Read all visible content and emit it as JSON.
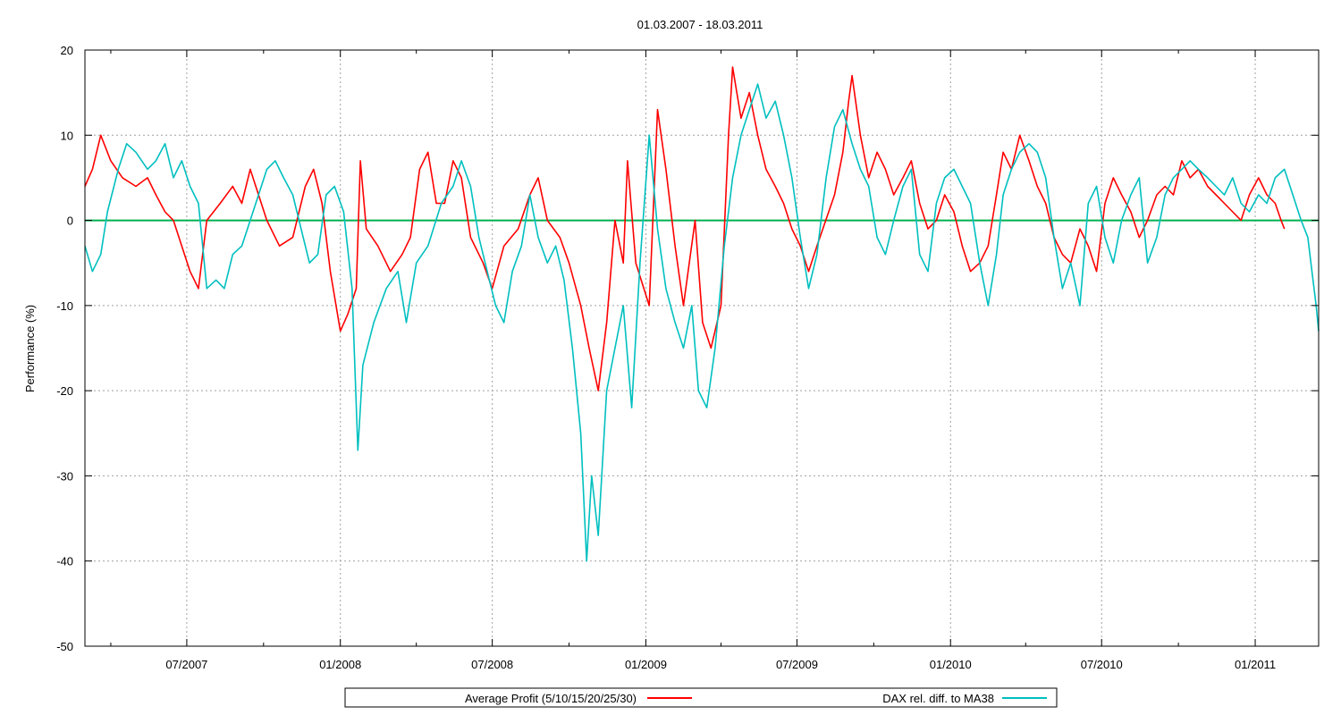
{
  "chart_data": {
    "type": "line",
    "title": "01.03.2007 - 18.03.2011",
    "xlabel": "",
    "ylabel": "Performance (%)",
    "ylim": [
      -50,
      20
    ],
    "yticks": [
      20,
      10,
      0,
      -10,
      -20,
      -30,
      -40,
      -50
    ],
    "xlim": [
      "2007-03-01",
      "2011-03-18"
    ],
    "xticks": [
      {
        "date": "2007-07-01",
        "label": "07/2007"
      },
      {
        "date": "2008-01-01",
        "label": "01/2008"
      },
      {
        "date": "2008-07-01",
        "label": "07/2008"
      },
      {
        "date": "2009-01-01",
        "label": "01/2009"
      },
      {
        "date": "2009-07-01",
        "label": "07/2009"
      },
      {
        "date": "2010-01-01",
        "label": "01/2010"
      },
      {
        "date": "2010-07-01",
        "label": "07/2010"
      },
      {
        "date": "2011-01-01",
        "label": "01/2011"
      }
    ],
    "grid": true,
    "legend_position": "bottom",
    "zero_line_color": "#00b050",
    "series": [
      {
        "name": "Average Profit (5/10/15/20/25/30)",
        "color": "#ff0000",
        "points": [
          [
            "2007-03-01",
            4
          ],
          [
            "2007-03-10",
            6
          ],
          [
            "2007-03-20",
            10
          ],
          [
            "2007-04-01",
            7
          ],
          [
            "2007-04-15",
            5
          ],
          [
            "2007-05-01",
            4
          ],
          [
            "2007-05-15",
            5
          ],
          [
            "2007-05-25",
            3
          ],
          [
            "2007-06-05",
            1
          ],
          [
            "2007-06-15",
            0
          ],
          [
            "2007-06-25",
            -3
          ],
          [
            "2007-07-05",
            -6
          ],
          [
            "2007-07-15",
            -8
          ],
          [
            "2007-07-25",
            0
          ],
          [
            "2007-08-10",
            2
          ],
          [
            "2007-08-25",
            4
          ],
          [
            "2007-09-05",
            2
          ],
          [
            "2007-09-15",
            6
          ],
          [
            "2007-09-25",
            3
          ],
          [
            "2007-10-05",
            0
          ],
          [
            "2007-10-20",
            -3
          ],
          [
            "2007-11-05",
            -2
          ],
          [
            "2007-11-20",
            4
          ],
          [
            "2007-11-30",
            6
          ],
          [
            "2007-12-10",
            2
          ],
          [
            "2007-12-20",
            -6
          ],
          [
            "2008-01-01",
            -13
          ],
          [
            "2008-01-10",
            -11
          ],
          [
            "2008-01-20",
            -8
          ],
          [
            "2008-01-25",
            7
          ],
          [
            "2008-02-01",
            -1
          ],
          [
            "2008-02-15",
            -3
          ],
          [
            "2008-03-01",
            -6
          ],
          [
            "2008-03-15",
            -4
          ],
          [
            "2008-03-25",
            -2
          ],
          [
            "2008-04-05",
            6
          ],
          [
            "2008-04-15",
            8
          ],
          [
            "2008-04-25",
            2
          ],
          [
            "2008-05-05",
            2
          ],
          [
            "2008-05-15",
            7
          ],
          [
            "2008-05-25",
            5
          ],
          [
            "2008-06-05",
            -2
          ],
          [
            "2008-06-20",
            -5
          ],
          [
            "2008-07-01",
            -8
          ],
          [
            "2008-07-15",
            -3
          ],
          [
            "2008-08-01",
            -1
          ],
          [
            "2008-08-15",
            3
          ],
          [
            "2008-08-25",
            5
          ],
          [
            "2008-09-05",
            0
          ],
          [
            "2008-09-20",
            -2
          ],
          [
            "2008-10-01",
            -5
          ],
          [
            "2008-10-15",
            -10
          ],
          [
            "2008-10-25",
            -15
          ],
          [
            "2008-11-05",
            -20
          ],
          [
            "2008-11-15",
            -12
          ],
          [
            "2008-11-25",
            0
          ],
          [
            "2008-12-05",
            -5
          ],
          [
            "2008-12-10",
            7
          ],
          [
            "2008-12-20",
            -5
          ],
          [
            "2009-01-05",
            -10
          ],
          [
            "2009-01-15",
            13
          ],
          [
            "2009-01-25",
            6
          ],
          [
            "2009-02-05",
            -3
          ],
          [
            "2009-02-15",
            -10
          ],
          [
            "2009-03-01",
            0
          ],
          [
            "2009-03-10",
            -12
          ],
          [
            "2009-03-20",
            -15
          ],
          [
            "2009-04-01",
            -10
          ],
          [
            "2009-04-10",
            10
          ],
          [
            "2009-04-15",
            18
          ],
          [
            "2009-04-25",
            12
          ],
          [
            "2009-05-05",
            15
          ],
          [
            "2009-05-15",
            10
          ],
          [
            "2009-05-25",
            6
          ],
          [
            "2009-06-05",
            4
          ],
          [
            "2009-06-15",
            2
          ],
          [
            "2009-06-25",
            -1
          ],
          [
            "2009-07-05",
            -3
          ],
          [
            "2009-07-15",
            -6
          ],
          [
            "2009-07-25",
            -3
          ],
          [
            "2009-08-01",
            -1
          ],
          [
            "2009-08-15",
            3
          ],
          [
            "2009-08-25",
            8
          ],
          [
            "2009-09-01",
            14
          ],
          [
            "2009-09-05",
            17
          ],
          [
            "2009-09-15",
            10
          ],
          [
            "2009-09-25",
            5
          ],
          [
            "2009-10-05",
            8
          ],
          [
            "2009-10-15",
            6
          ],
          [
            "2009-10-25",
            3
          ],
          [
            "2009-11-05",
            5
          ],
          [
            "2009-11-15",
            7
          ],
          [
            "2009-11-25",
            2
          ],
          [
            "2009-12-05",
            -1
          ],
          [
            "2009-12-15",
            0
          ],
          [
            "2009-12-25",
            3
          ],
          [
            "2010-01-05",
            1
          ],
          [
            "2010-01-15",
            -3
          ],
          [
            "2010-01-25",
            -6
          ],
          [
            "2010-02-05",
            -5
          ],
          [
            "2010-02-15",
            -3
          ],
          [
            "2010-02-25",
            3
          ],
          [
            "2010-03-05",
            8
          ],
          [
            "2010-03-15",
            6
          ],
          [
            "2010-03-25",
            10
          ],
          [
            "2010-04-05",
            7
          ],
          [
            "2010-04-15",
            4
          ],
          [
            "2010-04-25",
            2
          ],
          [
            "2010-05-05",
            -2
          ],
          [
            "2010-05-15",
            -4
          ],
          [
            "2010-05-25",
            -5
          ],
          [
            "2010-06-05",
            -1
          ],
          [
            "2010-06-15",
            -3
          ],
          [
            "2010-06-25",
            -6
          ],
          [
            "2010-07-05",
            2
          ],
          [
            "2010-07-15",
            5
          ],
          [
            "2010-07-25",
            3
          ],
          [
            "2010-08-05",
            1
          ],
          [
            "2010-08-15",
            -2
          ],
          [
            "2010-08-25",
            0
          ],
          [
            "2010-09-05",
            3
          ],
          [
            "2010-09-15",
            4
          ],
          [
            "2010-09-25",
            3
          ],
          [
            "2010-10-05",
            7
          ],
          [
            "2010-10-15",
            5
          ],
          [
            "2010-10-25",
            6
          ],
          [
            "2010-11-05",
            4
          ],
          [
            "2010-11-15",
            3
          ],
          [
            "2010-11-25",
            2
          ],
          [
            "2010-12-05",
            1
          ],
          [
            "2010-12-15",
            0
          ],
          [
            "2010-12-25",
            3
          ],
          [
            "2011-01-05",
            5
          ],
          [
            "2011-01-15",
            3
          ],
          [
            "2011-01-25",
            2
          ],
          [
            "2011-02-01",
            0
          ],
          [
            "2011-02-05",
            -1
          ]
        ]
      },
      {
        "name": "DAX rel. diff. to MA38",
        "color": "#00bfbf",
        "points": [
          [
            "2007-03-01",
            -3
          ],
          [
            "2007-03-10",
            -6
          ],
          [
            "2007-03-20",
            -4
          ],
          [
            "2007-03-28",
            1
          ],
          [
            "2007-04-10",
            6
          ],
          [
            "2007-04-20",
            9
          ],
          [
            "2007-05-01",
            8
          ],
          [
            "2007-05-15",
            6
          ],
          [
            "2007-05-25",
            7
          ],
          [
            "2007-06-05",
            9
          ],
          [
            "2007-06-15",
            5
          ],
          [
            "2007-06-25",
            7
          ],
          [
            "2007-07-05",
            4
          ],
          [
            "2007-07-15",
            2
          ],
          [
            "2007-07-25",
            -8
          ],
          [
            "2007-08-05",
            -7
          ],
          [
            "2007-08-15",
            -8
          ],
          [
            "2007-08-25",
            -4
          ],
          [
            "2007-09-05",
            -3
          ],
          [
            "2007-09-15",
            0
          ],
          [
            "2007-09-25",
            3
          ],
          [
            "2007-10-05",
            6
          ],
          [
            "2007-10-15",
            7
          ],
          [
            "2007-10-25",
            5
          ],
          [
            "2007-11-05",
            3
          ],
          [
            "2007-11-15",
            -1
          ],
          [
            "2007-11-25",
            -5
          ],
          [
            "2007-12-05",
            -4
          ],
          [
            "2007-12-15",
            3
          ],
          [
            "2007-12-25",
            4
          ],
          [
            "2008-01-05",
            1
          ],
          [
            "2008-01-15",
            -8
          ],
          [
            "2008-01-22",
            -27
          ],
          [
            "2008-01-28",
            -17
          ],
          [
            "2008-02-10",
            -12
          ],
          [
            "2008-02-25",
            -8
          ],
          [
            "2008-03-10",
            -6
          ],
          [
            "2008-03-20",
            -12
          ],
          [
            "2008-04-01",
            -5
          ],
          [
            "2008-04-15",
            -3
          ],
          [
            "2008-05-01",
            2
          ],
          [
            "2008-05-15",
            4
          ],
          [
            "2008-05-25",
            7
          ],
          [
            "2008-06-05",
            4
          ],
          [
            "2008-06-15",
            -2
          ],
          [
            "2008-06-25",
            -6
          ],
          [
            "2008-07-05",
            -10
          ],
          [
            "2008-07-15",
            -12
          ],
          [
            "2008-07-25",
            -6
          ],
          [
            "2008-08-05",
            -3
          ],
          [
            "2008-08-15",
            3
          ],
          [
            "2008-08-25",
            -2
          ],
          [
            "2008-09-05",
            -5
          ],
          [
            "2008-09-15",
            -3
          ],
          [
            "2008-09-25",
            -7
          ],
          [
            "2008-10-05",
            -15
          ],
          [
            "2008-10-15",
            -25
          ],
          [
            "2008-10-22",
            -40
          ],
          [
            "2008-10-28",
            -30
          ],
          [
            "2008-11-05",
            -37
          ],
          [
            "2008-11-15",
            -20
          ],
          [
            "2008-11-25",
            -15
          ],
          [
            "2008-12-05",
            -10
          ],
          [
            "2008-12-15",
            -22
          ],
          [
            "2008-12-25",
            -5
          ],
          [
            "2009-01-05",
            10
          ],
          [
            "2009-01-15",
            -1
          ],
          [
            "2009-01-25",
            -8
          ],
          [
            "2009-02-05",
            -12
          ],
          [
            "2009-02-15",
            -15
          ],
          [
            "2009-02-25",
            -10
          ],
          [
            "2009-03-05",
            -20
          ],
          [
            "2009-03-15",
            -22
          ],
          [
            "2009-03-25",
            -15
          ],
          [
            "2009-04-05",
            -3
          ],
          [
            "2009-04-15",
            5
          ],
          [
            "2009-04-25",
            10
          ],
          [
            "2009-05-05",
            13
          ],
          [
            "2009-05-15",
            16
          ],
          [
            "2009-05-25",
            12
          ],
          [
            "2009-06-05",
            14
          ],
          [
            "2009-06-15",
            10
          ],
          [
            "2009-06-25",
            5
          ],
          [
            "2009-07-05",
            -2
          ],
          [
            "2009-07-15",
            -8
          ],
          [
            "2009-07-25",
            -4
          ],
          [
            "2009-08-05",
            5
          ],
          [
            "2009-08-15",
            11
          ],
          [
            "2009-08-25",
            13
          ],
          [
            "2009-09-05",
            9
          ],
          [
            "2009-09-15",
            6
          ],
          [
            "2009-09-25",
            4
          ],
          [
            "2009-10-05",
            -2
          ],
          [
            "2009-10-15",
            -4
          ],
          [
            "2009-10-25",
            0
          ],
          [
            "2009-11-05",
            4
          ],
          [
            "2009-11-15",
            6
          ],
          [
            "2009-11-25",
            -4
          ],
          [
            "2009-12-05",
            -6
          ],
          [
            "2009-12-15",
            2
          ],
          [
            "2009-12-25",
            5
          ],
          [
            "2010-01-05",
            6
          ],
          [
            "2010-01-15",
            4
          ],
          [
            "2010-01-25",
            2
          ],
          [
            "2010-02-05",
            -5
          ],
          [
            "2010-02-15",
            -10
          ],
          [
            "2010-02-25",
            -4
          ],
          [
            "2010-03-05",
            3
          ],
          [
            "2010-03-15",
            6
          ],
          [
            "2010-03-25",
            8
          ],
          [
            "2010-04-05",
            9
          ],
          [
            "2010-04-15",
            8
          ],
          [
            "2010-04-25",
            5
          ],
          [
            "2010-05-05",
            -2
          ],
          [
            "2010-05-15",
            -8
          ],
          [
            "2010-05-25",
            -5
          ],
          [
            "2010-06-05",
            -10
          ],
          [
            "2010-06-15",
            2
          ],
          [
            "2010-06-25",
            4
          ],
          [
            "2010-07-05",
            -2
          ],
          [
            "2010-07-15",
            -5
          ],
          [
            "2010-07-25",
            0
          ],
          [
            "2010-08-05",
            3
          ],
          [
            "2010-08-15",
            5
          ],
          [
            "2010-08-25",
            -5
          ],
          [
            "2010-09-05",
            -2
          ],
          [
            "2010-09-15",
            3
          ],
          [
            "2010-09-25",
            5
          ],
          [
            "2010-10-05",
            6
          ],
          [
            "2010-10-15",
            7
          ],
          [
            "2010-10-25",
            6
          ],
          [
            "2010-11-05",
            5
          ],
          [
            "2010-11-15",
            4
          ],
          [
            "2010-11-25",
            3
          ],
          [
            "2010-12-05",
            5
          ],
          [
            "2010-12-15",
            2
          ],
          [
            "2010-12-25",
            1
          ],
          [
            "2011-01-05",
            3
          ],
          [
            "2011-01-15",
            2
          ],
          [
            "2011-01-25",
            5
          ],
          [
            "2011-02-05",
            6
          ],
          [
            "2011-02-15",
            3
          ],
          [
            "2011-02-25",
            0
          ],
          [
            "2011-03-05",
            -2
          ],
          [
            "2011-03-10",
            -6
          ],
          [
            "2011-03-15",
            -10
          ],
          [
            "2011-03-18",
            -13
          ]
        ]
      }
    ]
  }
}
